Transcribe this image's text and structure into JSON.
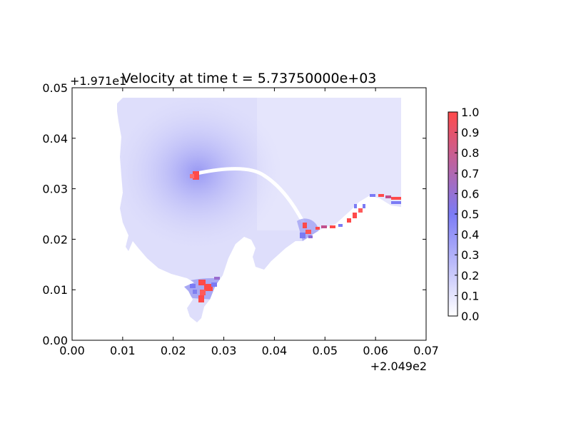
{
  "chart_data": {
    "type": "heatmap",
    "title": "Velocity at time t = 5.73750000e+03",
    "xlabel": "",
    "ylabel": "",
    "x_offset_label": "+2.049e2",
    "y_offset_label": "+1.971e1",
    "xlim": [
      0.0,
      0.07
    ],
    "ylim": [
      0.0,
      0.05
    ],
    "x_ticks": [
      0.0,
      0.01,
      0.02,
      0.03,
      0.04,
      0.05,
      0.06,
      0.07
    ],
    "x_tick_labels": [
      "0.00",
      "0.01",
      "0.02",
      "0.03",
      "0.04",
      "0.05",
      "0.06",
      "0.07"
    ],
    "y_ticks": [
      0.0,
      0.01,
      0.02,
      0.03,
      0.04,
      0.05
    ],
    "y_tick_labels": [
      "0.00",
      "0.01",
      "0.02",
      "0.03",
      "0.04",
      "0.05"
    ],
    "colorbar": {
      "min": 0.0,
      "max": 1.0,
      "ticks": [
        0.0,
        0.1,
        0.2,
        0.3,
        0.4,
        0.5,
        0.6,
        0.7,
        0.8,
        0.9,
        1.0
      ],
      "tick_labels": [
        "0.0",
        "0.1",
        "0.2",
        "0.3",
        "0.4",
        "0.5",
        "0.6",
        "0.7",
        "0.8",
        "0.9",
        "1.0"
      ],
      "colors": [
        "#ffffff",
        "#7b7bf5",
        "#ff4a4a"
      ]
    },
    "field": {
      "domain_x": [
        0.0102,
        0.0652
      ],
      "domain_y": [
        0.0045,
        0.048
      ],
      "hotspots": [
        {
          "x": 0.0248,
          "y": 0.0332,
          "value": 1.0
        },
        {
          "x": 0.026,
          "y": 0.0085,
          "value": 1.0
        },
        {
          "x": 0.0465,
          "y": 0.0215,
          "value": 0.9
        },
        {
          "x": 0.0575,
          "y": 0.025,
          "value": 0.8
        }
      ],
      "background_value": 0.12
    }
  }
}
